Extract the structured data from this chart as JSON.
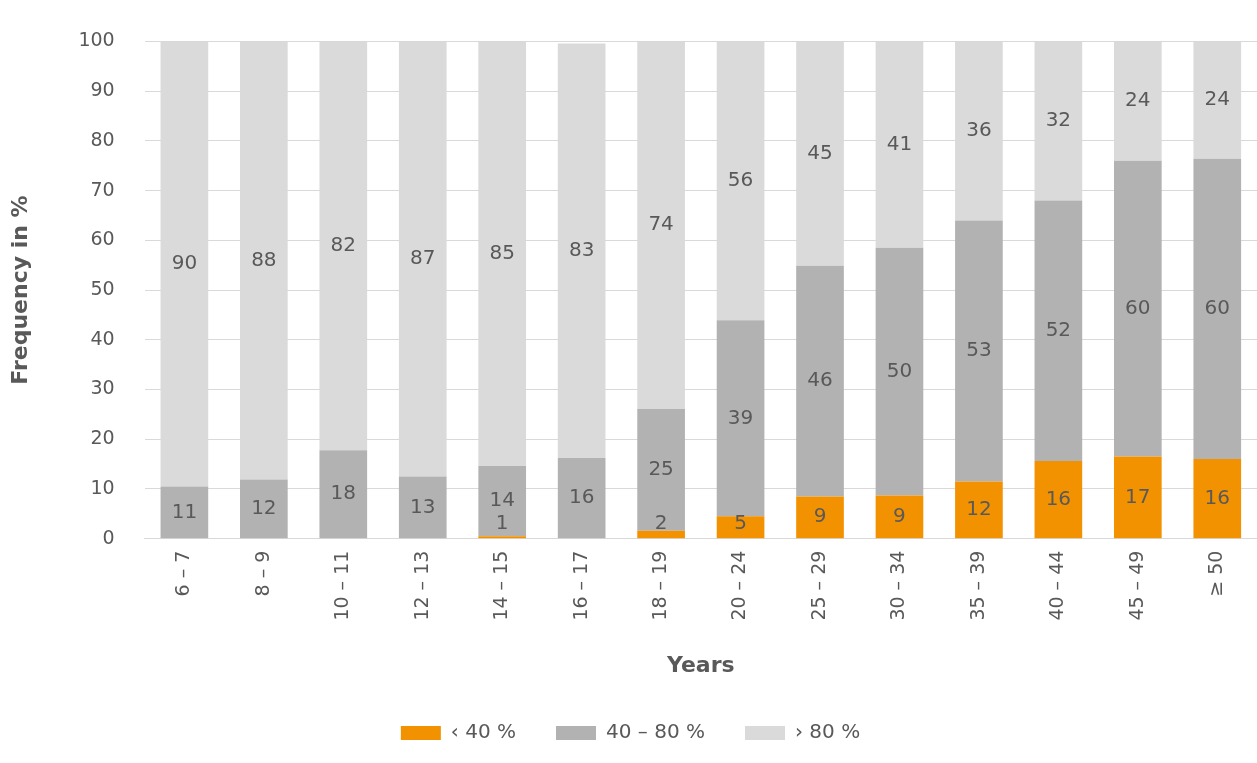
{
  "chart_data": {
    "type": "bar",
    "stacked": true,
    "xlabel": "Years",
    "ylabel": "Frequency in %",
    "categories": [
      "6 – 7",
      "8 – 9",
      "10 – 11",
      "12 – 13",
      "14 – 15",
      "16 – 17",
      "18 – 19",
      "20 – 24",
      "25 – 29",
      "30 – 34",
      "35 – 39",
      "40 – 44",
      "45 – 49",
      "≥ 50"
    ],
    "series": [
      {
        "name": "‹ 40 %",
        "color": "#f39200",
        "values": [
          0,
          0,
          0,
          0,
          0.5,
          0,
          1.6,
          4.5,
          8.5,
          8.7,
          11.5,
          15.6,
          16.5,
          16.0
        ],
        "value_labels": [
          null,
          null,
          null,
          null,
          "1",
          null,
          "2",
          "5",
          "9",
          "9",
          "12",
          "16",
          "17",
          "16"
        ]
      },
      {
        "name": "40 – 80 %",
        "color": "#b2b2b2",
        "values": [
          10.5,
          11.9,
          17.8,
          12.5,
          14.1,
          16.2,
          24.5,
          39.4,
          46.4,
          49.8,
          52.5,
          52.4,
          59.5,
          60.4
        ],
        "value_labels": [
          "11",
          "12",
          "18",
          "13",
          "14",
          "16",
          "25",
          "39",
          "46",
          "50",
          "53",
          "52",
          "60",
          "60"
        ]
      },
      {
        "name": "› 80 %",
        "color": "#dadada",
        "values": [
          89.5,
          88.1,
          82.2,
          87.4,
          85.4,
          83.4,
          73.9,
          56.1,
          45.1,
          41.5,
          36.0,
          32.0,
          24.0,
          23.6
        ],
        "value_labels": [
          "90",
          "88",
          "82",
          "87",
          "85",
          "83",
          "74",
          "56",
          "45",
          "41",
          "36",
          "32",
          "24",
          "24"
        ]
      }
    ],
    "ylim": [
      0,
      100
    ],
    "yticks": [
      0,
      10,
      20,
      30,
      40,
      50,
      60,
      70,
      80,
      90,
      100
    ],
    "grid": "y",
    "legend": "bottom"
  }
}
